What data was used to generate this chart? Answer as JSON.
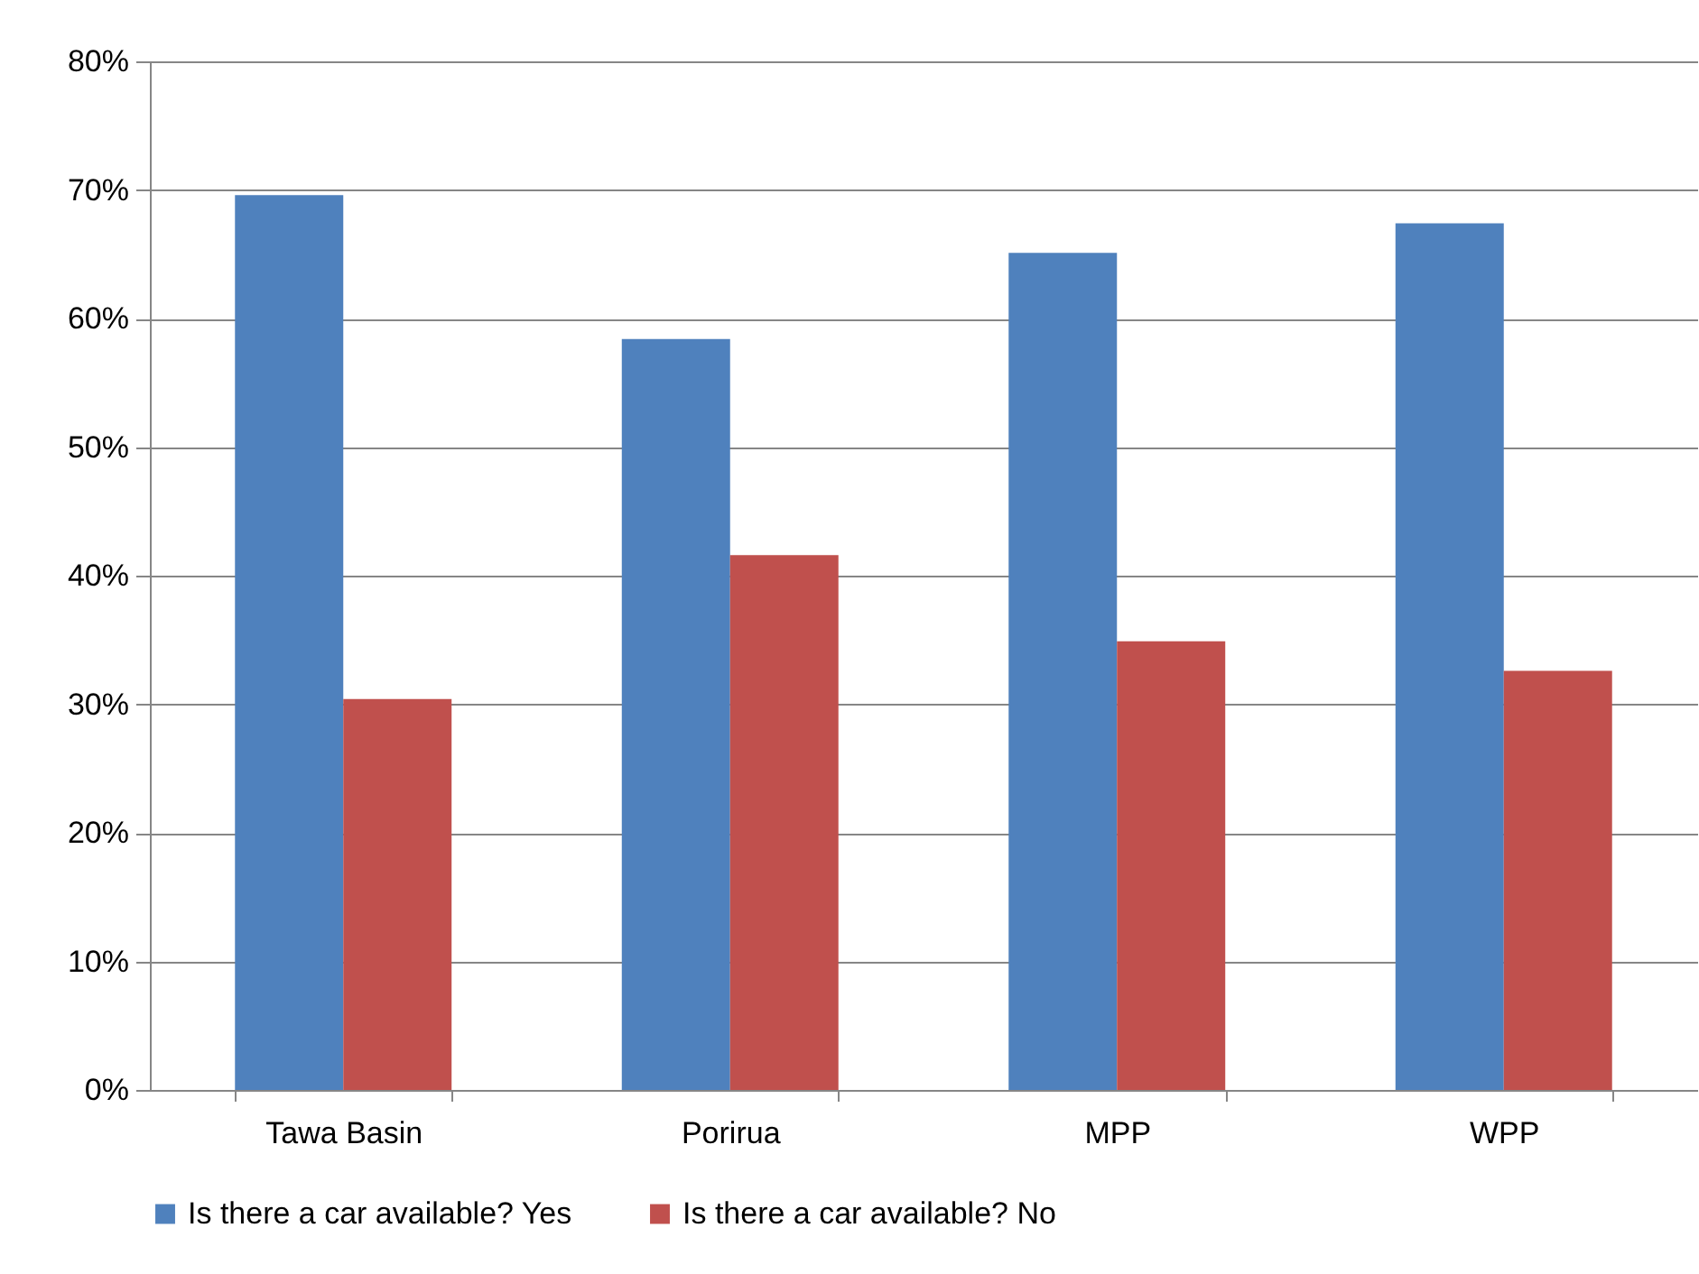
{
  "chart_data": {
    "type": "bar",
    "categories": [
      "Tawa Basin",
      "Porirua",
      "MPP",
      "WPP"
    ],
    "series": [
      {
        "name": "Is there a car available? Yes",
        "color": "#4f81bd",
        "values": [
          69.6,
          58.4,
          65.1,
          67.4
        ]
      },
      {
        "name": "Is there a car available? No",
        "color": "#c0504d",
        "values": [
          30.4,
          41.6,
          34.9,
          32.6
        ]
      }
    ],
    "ylim": [
      0,
      80
    ],
    "yticks": [
      {
        "value": 0,
        "label": "0%"
      },
      {
        "value": 10,
        "label": "10%"
      },
      {
        "value": 20,
        "label": "20%"
      },
      {
        "value": 30,
        "label": "30%"
      },
      {
        "value": 40,
        "label": "40%"
      },
      {
        "value": 50,
        "label": "50%"
      },
      {
        "value": 60,
        "label": "60%"
      },
      {
        "value": 70,
        "label": "70%"
      },
      {
        "value": 80,
        "label": "80%"
      }
    ],
    "grid": "y",
    "legend": "bottom"
  }
}
